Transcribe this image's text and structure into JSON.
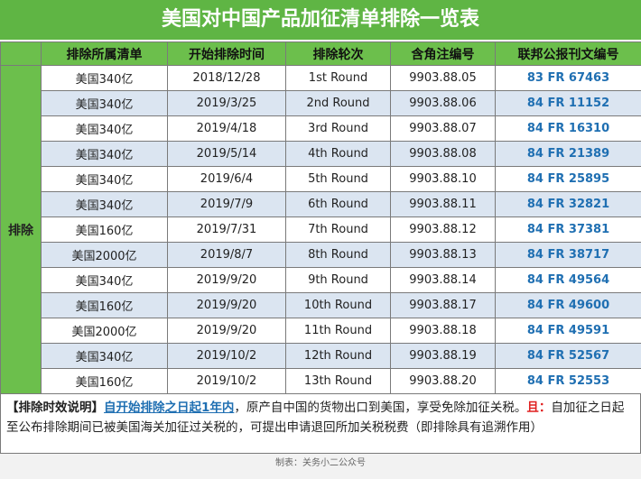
{
  "title": "美国对中国产品加征清单排除一览表",
  "table": {
    "side_label": "排除",
    "headers": [
      "排除所属清单",
      "开始排除时间",
      "排除轮次",
      "含角注编号",
      "联邦公报刊文编号"
    ],
    "rows": [
      [
        "美国340亿",
        "2018/12/28",
        "1st Round",
        "9903.88.05",
        "83 FR 67463"
      ],
      [
        "美国340亿",
        "2019/3/25",
        "2nd Round",
        "9903.88.06",
        "84 FR 11152"
      ],
      [
        "美国340亿",
        "2019/4/18",
        "3rd Round",
        "9903.88.07",
        "84 FR 16310"
      ],
      [
        "美国340亿",
        "2019/5/14",
        "4th Round",
        "9903.88.08",
        "84 FR 21389"
      ],
      [
        "美国340亿",
        "2019/6/4",
        "5th Round",
        "9903.88.10",
        "84 FR 25895"
      ],
      [
        "美国340亿",
        "2019/7/9",
        "6th Round",
        "9903.88.11",
        "84 FR 32821"
      ],
      [
        "美国160亿",
        "2019/7/31",
        "7th Round",
        "9903.88.12",
        "84 FR 37381"
      ],
      [
        "美国2000亿",
        "2019/8/7",
        "8th Round",
        "9903.88.13",
        "84 FR 38717"
      ],
      [
        "美国340亿",
        "2019/9/20",
        "9th Round",
        "9903.88.14",
        "84 FR 49564"
      ],
      [
        "美国160亿",
        "2019/9/20",
        "10th Round",
        "9903.88.17",
        "84 FR 49600"
      ],
      [
        "美国2000亿",
        "2019/9/20",
        "11th Round",
        "9903.88.18",
        "84 FR 49591"
      ],
      [
        "美国340亿",
        "2019/10/2",
        "12th Round",
        "9903.88.19",
        "84 FR 52567"
      ],
      [
        "美国160亿",
        "2019/10/2",
        "13th Round",
        "9903.88.20",
        "84 FR 52553"
      ]
    ]
  },
  "note": {
    "label": "【排除时效说明】",
    "highlight": "自开始排除之日起1年内",
    "text1": "，原产自中国的货物出口到美国，享受免除加征关税。",
    "emphasis": "且：",
    "text2": "自加征之日起至公布排除期间已被美国海关加征过关税的，可提出申请退回所加关税税费（即排除具有追溯作用）"
  },
  "footer": "制表：关务小二公众号"
}
